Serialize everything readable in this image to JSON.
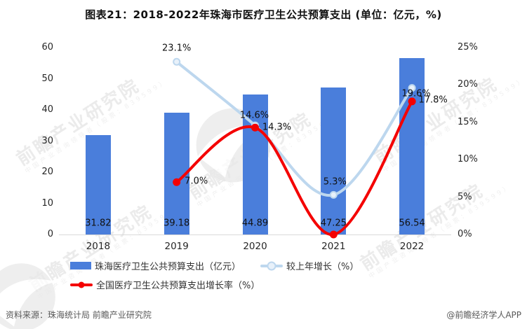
{
  "title": "图表21：2018-2022年珠海市医疗卫生公共预算支出 (单位：亿元，%)",
  "footer": {
    "source": "资料来源：珠海统计局 前瞻产业研究院",
    "credit": "@前瞻经济学人APP"
  },
  "watermark": {
    "text": "前瞻产业研究院",
    "subtext": "中国产业咨询领导者（股票：839599）"
  },
  "colors": {
    "bar": "#4a7edb",
    "line_growth": "#bdd7ee",
    "line_growth_marker_fill": "#e8f1fa",
    "line_national": "#f40000",
    "axis_line": "#d9d9d9",
    "text": "#262626"
  },
  "chart_data": {
    "type": "combo (bar + line)",
    "title": "图表21：2018-2022年珠海市医疗卫生公共预算支出 (单位：亿元，%)",
    "categories": [
      "2018",
      "2019",
      "2020",
      "2021",
      "2022"
    ],
    "series": [
      {
        "name": "珠海医疗卫生公共预算支出（亿元）",
        "type": "bar",
        "axis": "left",
        "color": "#4a7edb",
        "values": [
          31.82,
          39.18,
          44.89,
          47.25,
          56.54
        ],
        "labels": [
          "31.82",
          "39.18",
          "44.89",
          "47.25",
          "56.54"
        ]
      },
      {
        "name": "较上年增长（%）",
        "type": "line",
        "axis": "right",
        "color": "#bdd7ee",
        "values": [
          null,
          23.1,
          14.6,
          5.3,
          19.6
        ],
        "labels": [
          "",
          "23.1%",
          "14.6%",
          "5.3%",
          "19.6%"
        ]
      },
      {
        "name": "全国医疗卫生公共预算支出增长率（%）",
        "type": "line",
        "axis": "right",
        "color": "#f40000",
        "values": [
          null,
          7.0,
          14.3,
          0.0,
          17.8
        ],
        "labels": [
          "",
          "7.0%",
          "14.3%",
          "",
          "17.8%"
        ]
      }
    ],
    "left_axis": {
      "min": 0,
      "max": 60,
      "step": 10,
      "ticks": [
        "0",
        "10",
        "20",
        "30",
        "40",
        "50",
        "60"
      ]
    },
    "right_axis": {
      "min": 0,
      "max": 25,
      "step": 5,
      "ticks": [
        "0%",
        "5%",
        "10%",
        "15%",
        "20%",
        "25%"
      ]
    },
    "legend_position": "bottom-left",
    "grid": false,
    "notes": "红色线2021年数据点位于0%基线处，无数据标签"
  }
}
